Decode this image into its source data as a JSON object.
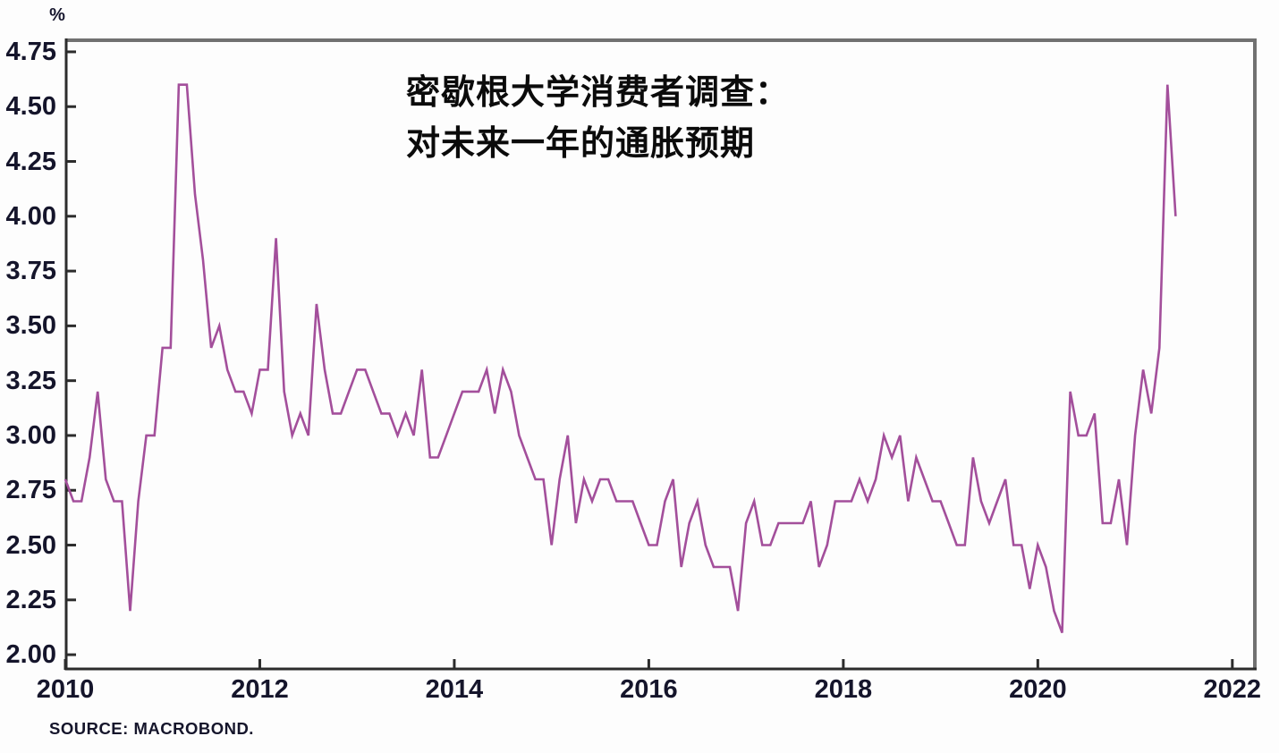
{
  "header": {
    "percent_label": "%"
  },
  "title": {
    "line1": "密歇根大学消费者调查：",
    "line2": "对未来一年的通胀预期"
  },
  "footer": {
    "source": "SOURCE: MACROBOND."
  },
  "chart_data": {
    "type": "line",
    "title": "密歇根大学消费者调查：对未来一年的通胀预期",
    "ylabel": "%",
    "xlabel": "",
    "grid": false,
    "legend": "none",
    "line_color": "#a34f9b",
    "axis_dark_color": "#2c2c2c",
    "axis_gray_color": "#717171",
    "x_start_year": 2010,
    "x_step_months": 1,
    "xlim": [
      2010,
      2022.25
    ],
    "ylim": [
      1.931,
      4.811
    ],
    "x_ticks": [
      2010,
      2012,
      2014,
      2016,
      2018,
      2020,
      2022
    ],
    "x_tick_labels": [
      "2010",
      "2012",
      "2014",
      "2016",
      "2018",
      "2020",
      "2022"
    ],
    "y_ticks": [
      2.0,
      2.25,
      2.5,
      2.75,
      3.0,
      3.25,
      3.5,
      3.75,
      4.0,
      4.25,
      4.5,
      4.75
    ],
    "y_tick_labels": [
      "2.00",
      "2.25",
      "2.50",
      "2.75",
      "3.00",
      "3.25",
      "3.50",
      "3.75",
      "4.00",
      "4.25",
      "4.50",
      "4.75"
    ],
    "values": [
      2.8,
      2.7,
      2.7,
      2.9,
      3.2,
      2.8,
      2.7,
      2.7,
      2.2,
      2.7,
      3.0,
      3.0,
      3.4,
      3.4,
      4.6,
      4.6,
      4.1,
      3.8,
      3.4,
      3.5,
      3.3,
      3.2,
      3.2,
      3.1,
      3.3,
      3.3,
      3.9,
      3.2,
      3.0,
      3.1,
      3.0,
      3.6,
      3.3,
      3.1,
      3.1,
      3.2,
      3.3,
      3.3,
      3.2,
      3.1,
      3.1,
      3.0,
      3.1,
      3.0,
      3.3,
      2.9,
      2.9,
      3.0,
      3.1,
      3.2,
      3.2,
      3.2,
      3.3,
      3.1,
      3.3,
      3.2,
      3.0,
      2.9,
      2.8,
      2.8,
      2.5,
      2.8,
      3.0,
      2.6,
      2.8,
      2.7,
      2.8,
      2.8,
      2.7,
      2.7,
      2.7,
      2.6,
      2.5,
      2.5,
      2.7,
      2.8,
      2.4,
      2.6,
      2.7,
      2.5,
      2.4,
      2.4,
      2.4,
      2.2,
      2.6,
      2.7,
      2.5,
      2.5,
      2.6,
      2.6,
      2.6,
      2.6,
      2.7,
      2.4,
      2.5,
      2.7,
      2.7,
      2.7,
      2.8,
      2.7,
      2.8,
      3.0,
      2.9,
      3.0,
      2.7,
      2.9,
      2.8,
      2.7,
      2.7,
      2.6,
      2.5,
      2.5,
      2.9,
      2.7,
      2.6,
      2.7,
      2.8,
      2.5,
      2.5,
      2.3,
      2.5,
      2.4,
      2.2,
      2.1,
      3.2,
      3.0,
      3.0,
      3.1,
      2.6,
      2.6,
      2.8,
      2.5,
      3.0,
      3.3,
      3.1,
      3.4,
      4.6,
      4.0
    ]
  }
}
